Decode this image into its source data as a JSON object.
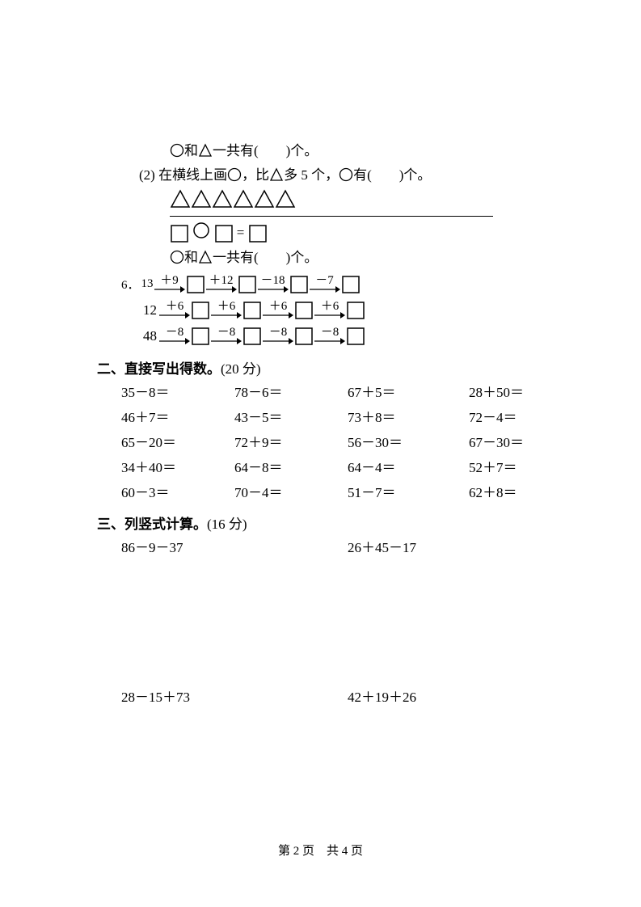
{
  "q_top": {
    "line1_pre": "和",
    "line1_mid": "一共有(",
    "line1_blank": "　　",
    "line1_end": ")个。",
    "line2_pre": "(2) 在横线上画",
    "line2_mid1": "，比",
    "line2_mid2": "多 5 个，",
    "line2_mid3": "有(",
    "line2_blank": "　　",
    "line2_end": ")个。",
    "eq_equals": "=",
    "line_bottom_pre": "和",
    "line_bottom_mid": "一共有(",
    "line_bottom_blank": "　　",
    "line_bottom_end": ")个。"
  },
  "q6": {
    "label": "6．",
    "chains": [
      {
        "start": "13",
        "ops": [
          "＋9",
          "＋12",
          "－18",
          "－7"
        ]
      },
      {
        "start": "12",
        "ops": [
          "＋6",
          "＋6",
          "＋6",
          "＋6"
        ]
      },
      {
        "start": "48",
        "ops": [
          "－8",
          "－8",
          "－8",
          "－8"
        ]
      }
    ]
  },
  "section2": {
    "title": "二、直接写出得数。",
    "points": "(20 分)",
    "rows": [
      [
        "35－8＝",
        "78－6＝",
        "67＋5＝",
        "28＋50＝"
      ],
      [
        "46＋7＝",
        "43－5＝",
        "73＋8＝",
        "72－4＝"
      ],
      [
        "65－20＝",
        "72＋9＝",
        "56－30＝",
        "67－30＝"
      ],
      [
        "34＋40＝",
        "64－8＝",
        "64－4＝",
        "52＋7＝"
      ],
      [
        "60－3＝",
        "70－4＝",
        "51－7＝",
        "62＋8＝"
      ]
    ]
  },
  "section3": {
    "title": "三、列竖式计算。",
    "points": "(16 分)",
    "problems": [
      "86－9－37",
      "26＋45－17",
      "28－15＋73",
      "42＋19＋26"
    ]
  },
  "footer": {
    "page_label": "第 2 页",
    "total_label": "共 4 页"
  },
  "colors": {
    "stroke": "#000000",
    "bg": "#ffffff"
  }
}
